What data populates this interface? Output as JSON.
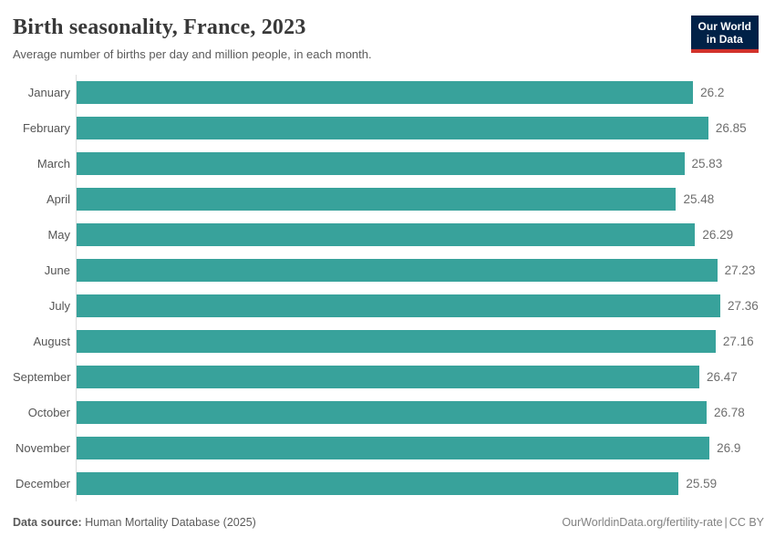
{
  "header": {
    "title": "Birth seasonality, France, 2023",
    "subtitle": "Average number of births per day and million people, in each month."
  },
  "logo": {
    "line1": "Our World",
    "line2": "in Data",
    "bg_color": "#002147",
    "accent_color": "#d1322b"
  },
  "chart_data": {
    "type": "bar",
    "orientation": "horizontal",
    "title": "Birth seasonality, France, 2023",
    "xlabel": "",
    "ylabel": "",
    "categories": [
      "January",
      "February",
      "March",
      "April",
      "May",
      "June",
      "July",
      "August",
      "September",
      "October",
      "November",
      "December"
    ],
    "values": [
      26.2,
      26.85,
      25.83,
      25.48,
      26.29,
      27.23,
      27.36,
      27.16,
      26.47,
      26.78,
      26.9,
      25.59
    ],
    "value_labels": [
      "26.2",
      "26.85",
      "25.83",
      "25.48",
      "26.29",
      "27.23",
      "27.36",
      "27.16",
      "26.47",
      "26.78",
      "26.9",
      "25.59"
    ],
    "xlim": [
      0,
      27.36
    ],
    "grid": false,
    "legend": "none",
    "bar_color": "#38a29b",
    "axis_line_color": "#dddddd"
  },
  "footer": {
    "source_label": "Data source:",
    "source_value": "Human Mortality Database (2025)",
    "link": "OurWorldinData.org/fertility-rate",
    "separator": "|",
    "license": "CC BY"
  }
}
